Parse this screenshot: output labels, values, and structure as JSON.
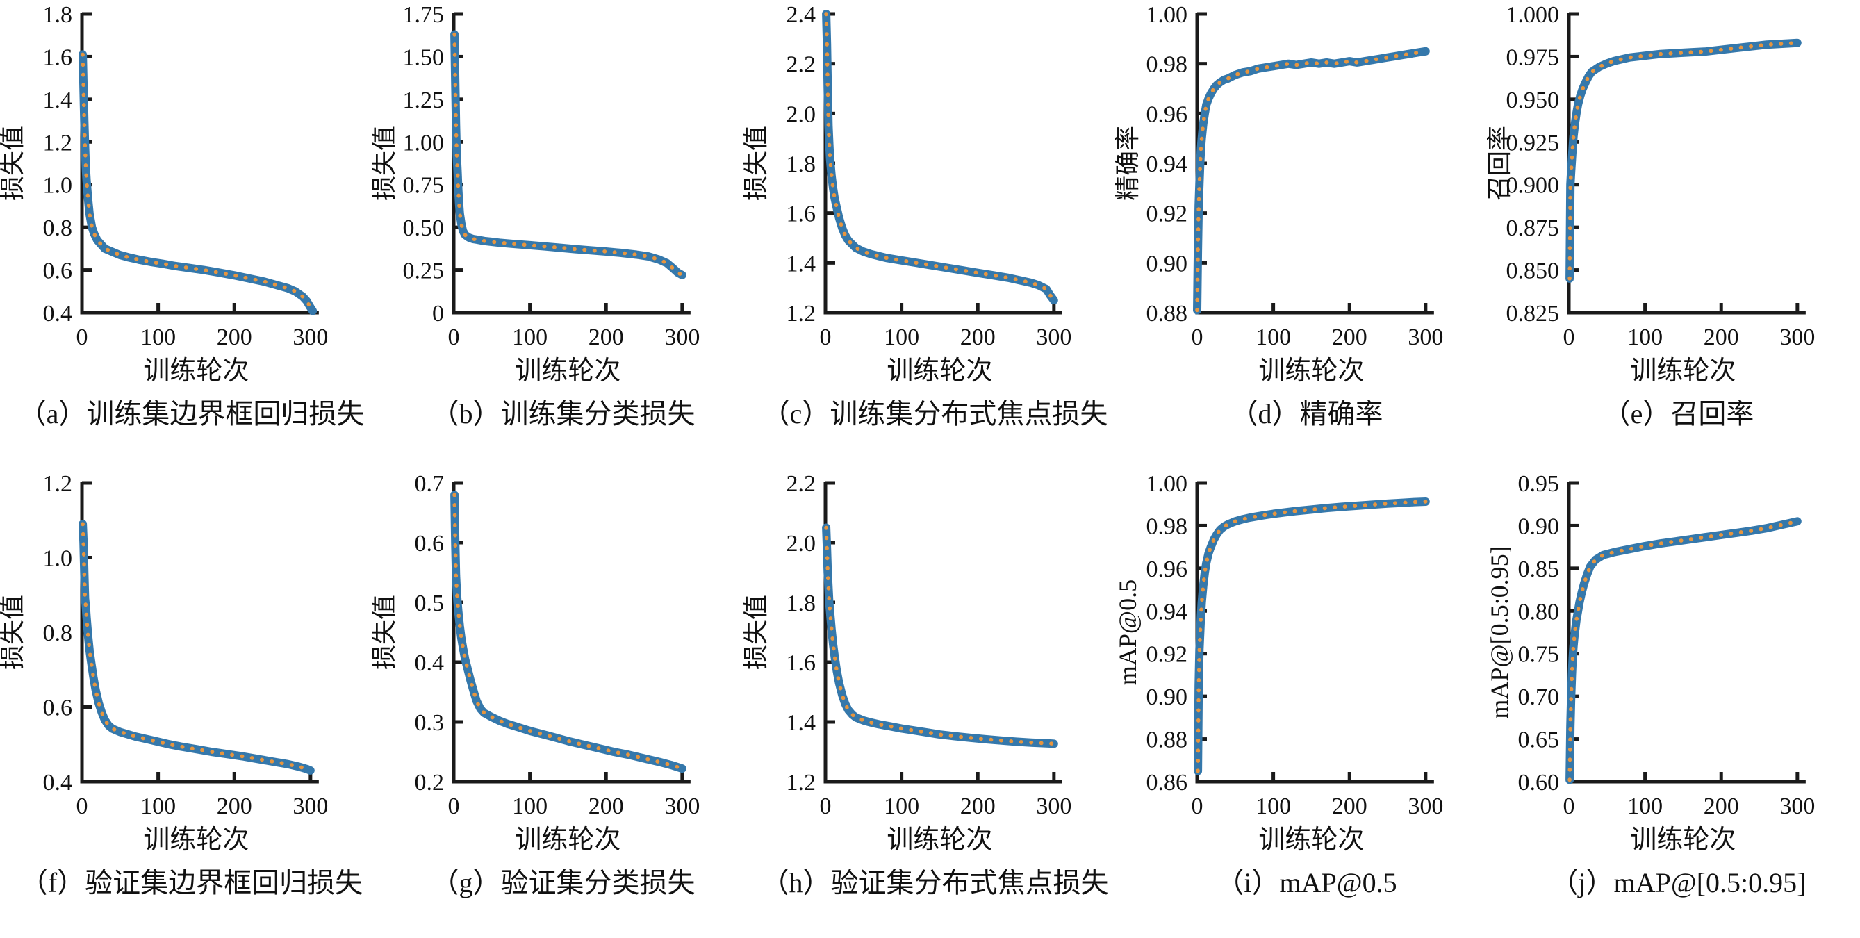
{
  "style": {
    "line_color": "#3578ab",
    "dash_color": "#e6953f",
    "axis_color": "#1a1a1a",
    "text_color": "#111111"
  },
  "chart_data": [
    {
      "id": "a",
      "type": "line",
      "caption": "（a）训练集边界框回归损失",
      "ylabel": "损失值",
      "xlabel": "训练轮次",
      "xlim": [
        0,
        312
      ],
      "ylim": [
        0.4,
        1.8
      ],
      "xticks": [
        0,
        100,
        200,
        300
      ],
      "yticks": [
        "0.4",
        "0.6",
        "0.8",
        "1.0",
        "1.2",
        "1.4",
        "1.6",
        "1.8"
      ],
      "grid": false,
      "legend": null,
      "x": [
        1,
        2,
        3,
        4,
        5,
        6,
        8,
        10,
        13,
        16,
        20,
        25,
        30,
        40,
        50,
        60,
        75,
        90,
        105,
        120,
        140,
        160,
        180,
        200,
        220,
        240,
        255,
        270,
        280,
        290,
        295,
        300,
        303
      ],
      "y": [
        1.61,
        1.45,
        1.3,
        1.18,
        1.08,
        1.02,
        0.93,
        0.86,
        0.8,
        0.77,
        0.74,
        0.72,
        0.7,
        0.685,
        0.67,
        0.66,
        0.648,
        0.638,
        0.63,
        0.62,
        0.61,
        0.6,
        0.588,
        0.575,
        0.56,
        0.545,
        0.53,
        0.515,
        0.5,
        0.475,
        0.455,
        0.425,
        0.408
      ]
    },
    {
      "id": "b",
      "type": "line",
      "caption": "（b）训练集分类损失",
      "ylabel": "损失值",
      "xlabel": "训练轮次",
      "xlim": [
        0,
        312
      ],
      "ylim": [
        0,
        1.75
      ],
      "xticks": [
        0,
        100,
        200,
        300
      ],
      "yticks": [
        "0",
        "0.25",
        "0.50",
        "0.75",
        "1.00",
        "1.25",
        "1.50",
        "1.75"
      ],
      "grid": false,
      "legend": null,
      "x": [
        1,
        2,
        3,
        4,
        5,
        6,
        7,
        8,
        10,
        12,
        15,
        20,
        25,
        30,
        40,
        50,
        60,
        80,
        100,
        120,
        140,
        160,
        180,
        200,
        220,
        240,
        255,
        270,
        280,
        288,
        294,
        300
      ],
      "y": [
        1.63,
        1.35,
        1.1,
        0.92,
        0.83,
        0.72,
        0.64,
        0.58,
        0.52,
        0.48,
        0.455,
        0.44,
        0.432,
        0.428,
        0.42,
        0.415,
        0.41,
        0.402,
        0.395,
        0.388,
        0.38,
        0.372,
        0.365,
        0.358,
        0.35,
        0.34,
        0.33,
        0.31,
        0.29,
        0.26,
        0.235,
        0.22
      ]
    },
    {
      "id": "c",
      "type": "line",
      "caption": "（c）训练集分布式焦点损失",
      "ylabel": "损失值",
      "xlabel": "训练轮次",
      "xlim": [
        0,
        312
      ],
      "ylim": [
        1.2,
        2.4
      ],
      "xticks": [
        0,
        100,
        200,
        300
      ],
      "yticks": [
        "1.2",
        "1.4",
        "1.6",
        "1.8",
        "2.0",
        "2.2",
        "2.4"
      ],
      "grid": false,
      "legend": null,
      "x": [
        1,
        2,
        3,
        4,
        5,
        6,
        8,
        10,
        12,
        15,
        18,
        22,
        26,
        30,
        40,
        50,
        60,
        80,
        100,
        120,
        140,
        160,
        180,
        200,
        220,
        240,
        255,
        270,
        280,
        290,
        295,
        300
      ],
      "y": [
        2.4,
        2.28,
        2.1,
        1.95,
        1.88,
        1.82,
        1.75,
        1.7,
        1.66,
        1.62,
        1.58,
        1.54,
        1.51,
        1.49,
        1.46,
        1.445,
        1.435,
        1.42,
        1.41,
        1.4,
        1.39,
        1.38,
        1.37,
        1.36,
        1.35,
        1.34,
        1.33,
        1.32,
        1.31,
        1.295,
        1.27,
        1.25
      ]
    },
    {
      "id": "d",
      "type": "line",
      "caption": "（d）精确率",
      "ylabel": "精确率",
      "xlabel": "训练轮次",
      "xlim": [
        0,
        312
      ],
      "ylim": [
        0.88,
        1.0
      ],
      "xticks": [
        0,
        100,
        200,
        300
      ],
      "yticks": [
        "0.88",
        "0.90",
        "0.92",
        "0.94",
        "0.96",
        "0.98",
        "1.00"
      ],
      "grid": false,
      "legend": null,
      "x": [
        0,
        1,
        2,
        3,
        4,
        5,
        6,
        8,
        10,
        12,
        15,
        18,
        22,
        26,
        30,
        35,
        40,
        50,
        60,
        70,
        80,
        90,
        100,
        110,
        120,
        130,
        140,
        150,
        160,
        170,
        180,
        190,
        200,
        210,
        220,
        230,
        240,
        250,
        260,
        270,
        280,
        290,
        300
      ],
      "y": [
        0.881,
        0.905,
        0.923,
        0.932,
        0.94,
        0.946,
        0.95,
        0.956,
        0.96,
        0.9635,
        0.966,
        0.968,
        0.97,
        0.9715,
        0.9725,
        0.9735,
        0.974,
        0.9755,
        0.9765,
        0.977,
        0.978,
        0.9785,
        0.979,
        0.9795,
        0.98,
        0.9795,
        0.98,
        0.9805,
        0.98,
        0.9805,
        0.98,
        0.9805,
        0.981,
        0.9805,
        0.981,
        0.9815,
        0.982,
        0.9825,
        0.983,
        0.9835,
        0.984,
        0.9845,
        0.985
      ]
    },
    {
      "id": "e",
      "type": "line",
      "caption": "（e）召回率",
      "ylabel": "召回率",
      "xlabel": "训练轮次",
      "xlim": [
        0,
        312
      ],
      "ylim": [
        0.825,
        1.0
      ],
      "xticks": [
        0,
        100,
        200,
        300
      ],
      "yticks": [
        "0.825",
        "0.850",
        "0.875",
        "0.900",
        "0.925",
        "0.950",
        "0.975",
        "1.000"
      ],
      "grid": false,
      "legend": null,
      "x": [
        1,
        2,
        3,
        4,
        5,
        6,
        8,
        10,
        12,
        15,
        18,
        22,
        26,
        30,
        40,
        50,
        60,
        80,
        100,
        120,
        140,
        160,
        180,
        200,
        220,
        240,
        260,
        280,
        300
      ],
      "y": [
        0.845,
        0.9,
        0.908,
        0.915,
        0.922,
        0.928,
        0.936,
        0.942,
        0.947,
        0.952,
        0.956,
        0.96,
        0.9635,
        0.966,
        0.969,
        0.971,
        0.9725,
        0.9745,
        0.9755,
        0.9765,
        0.977,
        0.9775,
        0.978,
        0.979,
        0.98,
        0.981,
        0.982,
        0.9825,
        0.983
      ]
    },
    {
      "id": "f",
      "type": "line",
      "caption": "（f）验证集边界框回归损失",
      "ylabel": "损失值",
      "xlabel": "训练轮次",
      "xlim": [
        0,
        312
      ],
      "ylim": [
        0.4,
        1.2
      ],
      "xticks": [
        0,
        100,
        200,
        300
      ],
      "yticks": [
        "0.4",
        "0.6",
        "0.8",
        "1.0",
        "1.2"
      ],
      "grid": false,
      "legend": null,
      "x": [
        1,
        2,
        3,
        4,
        5,
        6,
        8,
        10,
        12,
        15,
        18,
        22,
        26,
        30,
        35,
        40,
        50,
        60,
        70,
        85,
        100,
        115,
        130,
        150,
        170,
        190,
        210,
        230,
        250,
        270,
        285,
        295,
        300
      ],
      "y": [
        1.09,
        1.04,
        0.96,
        0.89,
        0.87,
        0.84,
        0.79,
        0.75,
        0.72,
        0.68,
        0.645,
        0.61,
        0.585,
        0.565,
        0.55,
        0.542,
        0.533,
        0.527,
        0.521,
        0.514,
        0.507,
        0.5,
        0.494,
        0.487,
        0.48,
        0.474,
        0.468,
        0.461,
        0.454,
        0.447,
        0.44,
        0.434,
        0.43
      ]
    },
    {
      "id": "g",
      "type": "line",
      "caption": "（g）验证集分类损失",
      "ylabel": "损失值",
      "xlabel": "训练轮次",
      "xlim": [
        0,
        312
      ],
      "ylim": [
        0.2,
        0.7
      ],
      "xticks": [
        0,
        100,
        200,
        300
      ],
      "yticks": [
        "0.2",
        "0.3",
        "0.4",
        "0.5",
        "0.6",
        "0.7"
      ],
      "grid": false,
      "legend": null,
      "x": [
        1,
        2,
        3,
        4,
        5,
        6,
        8,
        10,
        12,
        15,
        18,
        22,
        26,
        30,
        35,
        40,
        50,
        60,
        70,
        85,
        100,
        115,
        130,
        150,
        170,
        190,
        210,
        230,
        250,
        270,
        285,
        295,
        300
      ],
      "y": [
        0.68,
        0.6,
        0.545,
        0.52,
        0.5,
        0.485,
        0.46,
        0.44,
        0.425,
        0.405,
        0.39,
        0.37,
        0.352,
        0.335,
        0.322,
        0.315,
        0.308,
        0.302,
        0.297,
        0.291,
        0.285,
        0.28,
        0.275,
        0.268,
        0.262,
        0.256,
        0.25,
        0.245,
        0.239,
        0.233,
        0.228,
        0.224,
        0.222
      ]
    },
    {
      "id": "h",
      "type": "line",
      "caption": "（h）验证集分布式焦点损失",
      "ylabel": "损失值",
      "xlabel": "训练轮次",
      "xlim": [
        0,
        312
      ],
      "ylim": [
        1.2,
        2.2
      ],
      "xticks": [
        0,
        100,
        200,
        300
      ],
      "yticks": [
        "1.2",
        "1.4",
        "1.6",
        "1.8",
        "2.0",
        "2.2"
      ],
      "grid": false,
      "legend": null,
      "x": [
        1,
        2,
        3,
        4,
        5,
        6,
        8,
        10,
        12,
        15,
        18,
        22,
        26,
        30,
        35,
        40,
        50,
        60,
        70,
        85,
        100,
        115,
        130,
        150,
        170,
        190,
        210,
        230,
        250,
        270,
        285,
        295,
        300
      ],
      "y": [
        2.05,
        1.98,
        1.9,
        1.85,
        1.8,
        1.77,
        1.71,
        1.66,
        1.62,
        1.57,
        1.53,
        1.49,
        1.46,
        1.44,
        1.425,
        1.415,
        1.405,
        1.398,
        1.392,
        1.385,
        1.378,
        1.372,
        1.366,
        1.358,
        1.352,
        1.347,
        1.342,
        1.338,
        1.334,
        1.331,
        1.329,
        1.328,
        1.327
      ]
    },
    {
      "id": "i",
      "type": "line",
      "caption": "（i）mAP@0.5",
      "ylabel": "mAP@0.5",
      "xlabel": "训练轮次",
      "xlim": [
        0,
        312
      ],
      "ylim": [
        0.86,
        1.0
      ],
      "xticks": [
        0,
        100,
        200,
        300
      ],
      "yticks": [
        "0.86",
        "0.88",
        "0.90",
        "0.92",
        "0.94",
        "0.96",
        "0.98",
        "1.00"
      ],
      "grid": false,
      "legend": null,
      "x": [
        1,
        2,
        3,
        4,
        5,
        6,
        8,
        10,
        12,
        15,
        18,
        22,
        26,
        30,
        35,
        40,
        50,
        60,
        70,
        85,
        100,
        115,
        130,
        150,
        170,
        190,
        210,
        230,
        250,
        270,
        285,
        300
      ],
      "y": [
        0.865,
        0.905,
        0.922,
        0.93,
        0.938,
        0.944,
        0.952,
        0.958,
        0.9625,
        0.967,
        0.97,
        0.9735,
        0.976,
        0.978,
        0.9795,
        0.9805,
        0.982,
        0.983,
        0.9838,
        0.9847,
        0.9855,
        0.9862,
        0.9868,
        0.9875,
        0.9882,
        0.9888,
        0.9893,
        0.9898,
        0.9903,
        0.9907,
        0.991,
        0.9912
      ]
    },
    {
      "id": "j",
      "type": "line",
      "caption": "（j）mAP@[0.5:0.95]",
      "ylabel": "mAP@[0.5:0.95]",
      "xlabel": "训练轮次",
      "xlim": [
        0,
        312
      ],
      "ylim": [
        0.6,
        0.95
      ],
      "xticks": [
        0,
        100,
        200,
        300
      ],
      "yticks": [
        "0.60",
        "0.65",
        "0.70",
        "0.75",
        "0.80",
        "0.85",
        "0.90",
        "0.95"
      ],
      "grid": false,
      "legend": null,
      "x": [
        1,
        2,
        3,
        4,
        5,
        6,
        7,
        8,
        10,
        12,
        14,
        17,
        20,
        24,
        28,
        35,
        45,
        60,
        80,
        100,
        120,
        140,
        160,
        180,
        200,
        220,
        240,
        260,
        280,
        300
      ],
      "y": [
        0.602,
        0.665,
        0.7,
        0.725,
        0.745,
        0.758,
        0.768,
        0.776,
        0.79,
        0.8,
        0.81,
        0.822,
        0.832,
        0.843,
        0.852,
        0.86,
        0.8655,
        0.869,
        0.8725,
        0.876,
        0.879,
        0.8815,
        0.884,
        0.8865,
        0.889,
        0.8915,
        0.894,
        0.897,
        0.901,
        0.905
      ]
    }
  ]
}
